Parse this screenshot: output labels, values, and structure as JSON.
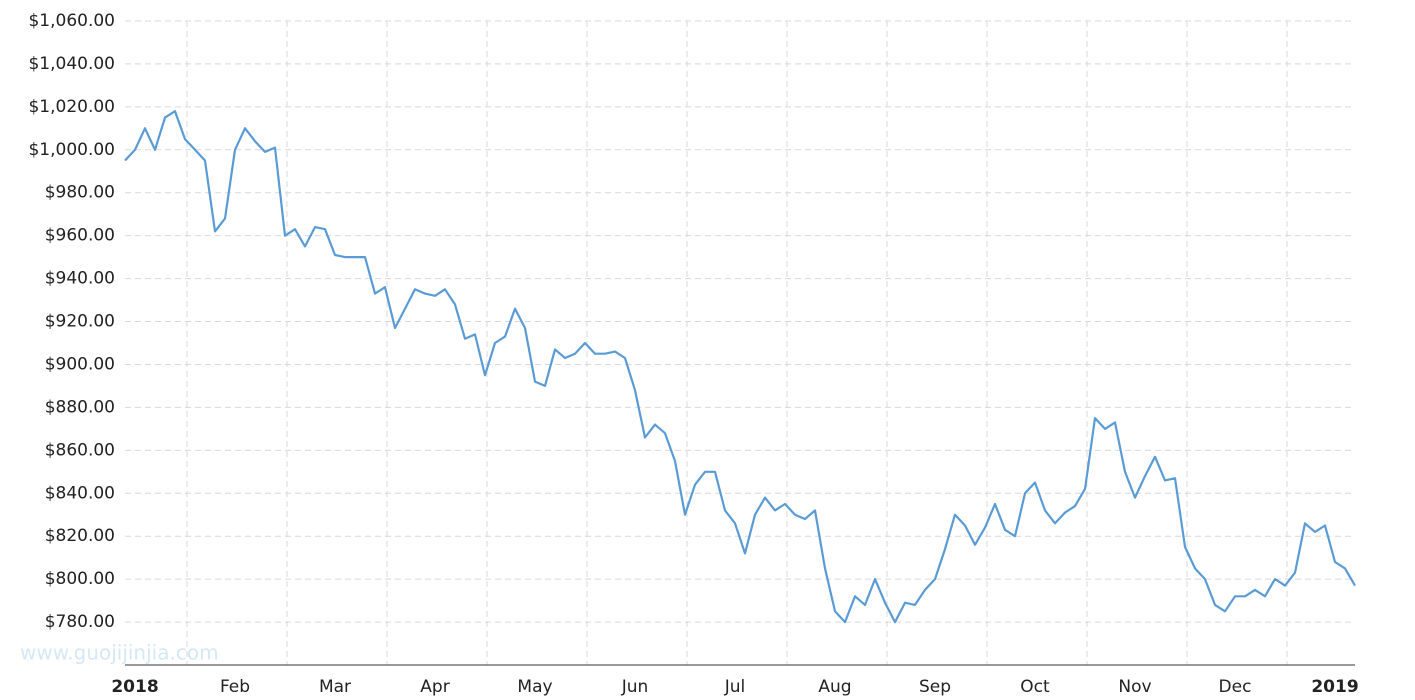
{
  "chart_data": {
    "type": "line",
    "watermark": "www.guojijinjia.com",
    "categories": [
      null,
      "2018",
      null,
      null,
      null,
      null,
      null,
      null,
      null,
      null,
      null,
      "Feb",
      null,
      null,
      null,
      null,
      null,
      null,
      null,
      null,
      null,
      "Mar",
      null,
      null,
      null,
      null,
      null,
      null,
      null,
      null,
      null,
      "Apr",
      null,
      null,
      null,
      null,
      null,
      null,
      null,
      null,
      null,
      "May",
      null,
      null,
      null,
      null,
      null,
      null,
      null,
      null,
      null,
      "Jun",
      null,
      null,
      null,
      null,
      null,
      null,
      null,
      null,
      null,
      "Jul",
      null,
      null,
      null,
      null,
      null,
      null,
      null,
      null,
      null,
      "Aug",
      null,
      null,
      null,
      null,
      null,
      null,
      null,
      null,
      null,
      "Sep",
      null,
      null,
      null,
      null,
      null,
      null,
      null,
      null,
      null,
      "Oct",
      null,
      null,
      null,
      null,
      null,
      null,
      null,
      null,
      null,
      "Nov",
      null,
      null,
      null,
      null,
      null,
      null,
      null,
      null,
      null,
      "Dec",
      null,
      null,
      null,
      null,
      null,
      null,
      null,
      null,
      null,
      "2019",
      null,
      null
    ],
    "bold_categories": [
      "2018",
      "2019"
    ],
    "values": [
      995,
      1000,
      1010,
      1000,
      1015,
      1018,
      1005,
      1000,
      995,
      962,
      968,
      1000,
      1010,
      1004,
      999,
      1001,
      960,
      963,
      955,
      964,
      963,
      951,
      950,
      950,
      950,
      933,
      936,
      917,
      926,
      935,
      933,
      932,
      935,
      928,
      912,
      914,
      895,
      910,
      913,
      926,
      917,
      892,
      890,
      907,
      903,
      905,
      910,
      905,
      905,
      906,
      903,
      888,
      866,
      872,
      868,
      855,
      830,
      844,
      850,
      850,
      832,
      826,
      812,
      830,
      838,
      832,
      835,
      830,
      828,
      832,
      805,
      785,
      780,
      792,
      788,
      800,
      789,
      780,
      789,
      788,
      795,
      800,
      814,
      830,
      825,
      816,
      824,
      835,
      823,
      820,
      840,
      845,
      832,
      826,
      831,
      834,
      842,
      875,
      870,
      873,
      850,
      838,
      848,
      857,
      846,
      847,
      815,
      805,
      800,
      788,
      785,
      792,
      792,
      795,
      792,
      800,
      797,
      803,
      826,
      822,
      825,
      808,
      805,
      797
    ],
    "color": "#5b9bd5",
    "ylim": [
      760,
      1060
    ],
    "yticks": [
      {
        "value": 780,
        "label": "$780.00"
      },
      {
        "value": 800,
        "label": "$800.00"
      },
      {
        "value": 820,
        "label": "$820.00"
      },
      {
        "value": 840,
        "label": "$840.00"
      },
      {
        "value": 860,
        "label": "$860.00"
      },
      {
        "value": 880,
        "label": "$880.00"
      },
      {
        "value": 900,
        "label": "$900.00"
      },
      {
        "value": 920,
        "label": "$920.00"
      },
      {
        "value": 940,
        "label": "$940.00"
      },
      {
        "value": 960,
        "label": "$960.00"
      },
      {
        "value": 980,
        "label": "$980.00"
      },
      {
        "value": 1000,
        "label": "$1,000.00"
      },
      {
        "value": 1020,
        "label": "$1,020.00"
      },
      {
        "value": 1040,
        "label": "$1,040.00"
      },
      {
        "value": 1060,
        "label": "$1,060.00"
      }
    ],
    "grid": true
  }
}
